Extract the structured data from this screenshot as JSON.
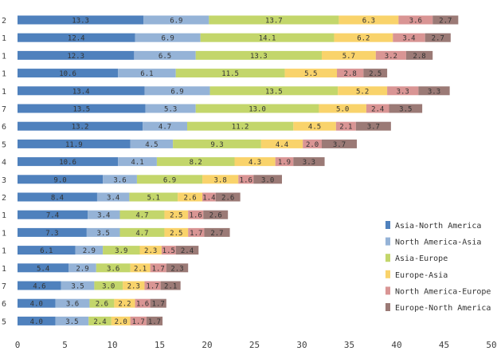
{
  "chart_data": {
    "type": "bar",
    "orientation": "horizontal",
    "stacked": true,
    "title": "",
    "xlabel": "",
    "ylabel": "",
    "xlim": [
      0,
      50
    ],
    "x_ticks": [
      0,
      5,
      10,
      15,
      20,
      25,
      30,
      35,
      40,
      45,
      50
    ],
    "grid": false,
    "legend_position": "bottom-right",
    "categories": [
      "2",
      "1",
      "1",
      "1",
      "1",
      "7",
      "6",
      "5",
      "4",
      "3",
      "2",
      "1",
      "1",
      "1",
      "1",
      "7",
      "6",
      "5"
    ],
    "series": [
      {
        "name": "Asia-North America",
        "color": "#4f81bd",
        "values": [
          13.3,
          12.4,
          12.3,
          10.6,
          13.4,
          13.5,
          13.2,
          11.9,
          10.6,
          9.0,
          8.4,
          7.4,
          7.3,
          6.1,
          5.4,
          4.6,
          4.0,
          4.0
        ]
      },
      {
        "name": "North America-Asia",
        "color": "#95b3d7",
        "values": [
          6.9,
          6.9,
          6.5,
          6.1,
          6.9,
          5.3,
          4.7,
          4.5,
          4.1,
          3.6,
          3.4,
          3.4,
          3.5,
          2.9,
          2.9,
          3.5,
          3.6,
          3.5
        ]
      },
      {
        "name": "Asia-Europe",
        "color": "#c3d66b",
        "values": [
          13.7,
          14.1,
          13.3,
          11.5,
          13.5,
          13.0,
          11.2,
          9.3,
          8.2,
          6.9,
          5.1,
          4.7,
          4.7,
          3.9,
          3.6,
          3.0,
          2.6,
          2.4
        ]
      },
      {
        "name": "Europe-Asia",
        "color": "#f9d36b",
        "values": [
          6.3,
          6.2,
          5.7,
          5.5,
          5.2,
          5.0,
          4.5,
          4.4,
          4.3,
          3.8,
          2.6,
          2.5,
          2.5,
          2.3,
          2.1,
          2.3,
          2.2,
          2.0
        ]
      },
      {
        "name": "North America-Europe",
        "color": "#d99594",
        "values": [
          3.6,
          3.4,
          3.2,
          2.8,
          3.3,
          2.4,
          2.1,
          2.0,
          1.9,
          1.6,
          1.4,
          1.6,
          1.7,
          1.5,
          1.7,
          1.7,
          1.6,
          1.7
        ]
      },
      {
        "name": "Europe-North America",
        "color": "#9b7a76",
        "values": [
          2.7,
          2.7,
          2.8,
          2.5,
          3.3,
          3.5,
          3.7,
          3.7,
          3.3,
          3.0,
          2.6,
          2.6,
          2.7,
          2.4,
          2.3,
          2.1,
          1.7,
          1.7
        ]
      }
    ],
    "value_labels": [
      [
        "13.3",
        "6.9",
        "13.7",
        "6.3",
        "3.6",
        "2.7"
      ],
      [
        "12.4",
        "6.9",
        "14.1",
        "6.2",
        "3.4",
        "2.7"
      ],
      [
        "12.3",
        "6.5",
        "13.3",
        "5.7",
        "3.2",
        "2.8"
      ],
      [
        "10.6",
        "6.1",
        "11.5",
        "5.5",
        "2.8",
        "2.5"
      ],
      [
        "13.4",
        "6.9",
        "13.5",
        "5.2",
        "3.3",
        "3.3"
      ],
      [
        "13.5",
        "5.3",
        "13.0",
        "5.0",
        "2.4",
        "3.5"
      ],
      [
        "13.2",
        "4.7",
        "11.2",
        "4.5",
        "2.1",
        "3.7"
      ],
      [
        "11.9",
        "4.5",
        "9.3",
        "4.4",
        "2.0",
        "3.7"
      ],
      [
        "10.6",
        "4.1",
        "8.2",
        "4.3",
        "1.9",
        "3.3"
      ],
      [
        "9.0",
        "3.6",
        "6.9",
        "3.8",
        "1.6",
        "3.0"
      ],
      [
        "8.4",
        "3.4",
        "5.1",
        "2.6",
        "1.4",
        "2.6"
      ],
      [
        "7.4",
        "3.4",
        "4.7",
        "2.5",
        "1.6",
        "2.6"
      ],
      [
        "7.3",
        "3.5",
        "4.7",
        "2.5",
        "1.7",
        "2.7"
      ],
      [
        "6.1",
        "2.9",
        "3.9",
        "2.3",
        "1.5",
        "2.4"
      ],
      [
        "5.4",
        "2.9",
        "3.6",
        "2.1",
        "1.7",
        "2.3"
      ],
      [
        "4.6",
        "3.5",
        "3.0",
        "2.3",
        "1.7",
        "2.1"
      ],
      [
        "4.0",
        "3.6",
        "2.6",
        "2.2",
        "1.6",
        "1.7"
      ],
      [
        "4.0",
        "3.5",
        "2.4",
        "2.0",
        "1.7",
        "1.7"
      ]
    ]
  }
}
